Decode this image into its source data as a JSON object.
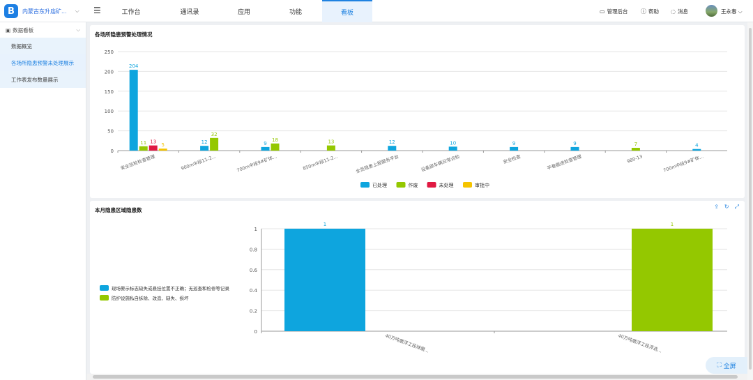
{
  "app": {
    "name": "内蒙古东升庙矿...",
    "logo_letter": "B"
  },
  "nav": {
    "tabs": [
      {
        "label": "工作台"
      },
      {
        "label": "通讯录"
      },
      {
        "label": "应用"
      },
      {
        "label": "功能"
      },
      {
        "label": "看板"
      }
    ],
    "active": "看板"
  },
  "toolbar": {
    "admin": "管理后台",
    "help": "帮助",
    "messages": "消息",
    "user": "王永春"
  },
  "sidebar": {
    "group": "数据看板",
    "items": [
      {
        "label": "数据概览"
      },
      {
        "label": "各场所隐患预警未处理展示"
      },
      {
        "label": "工作表发布数量展示"
      }
    ]
  },
  "fullscreen_label": "全屏",
  "colors": {
    "processed": "#0ea5de",
    "working": "#94c800",
    "unprocessed": "#e01942",
    "reviewing": "#f5c400",
    "accent": "#1f82e1"
  },
  "chart_data": [
    {
      "type": "bar",
      "title": "各场所隐患预警处理情况",
      "categories": [
        "安全巡检检查管理",
        "900m中段11-2...",
        "700m中段9#矿体...",
        "850m中段11-2...",
        "全员隐患上报服务平台",
        "设备部车辆日常点检",
        "安全检查",
        "平巷掘进检查管理",
        "980-13",
        "700m中段9#矿体..."
      ],
      "ylim": [
        0,
        250
      ],
      "yticks": [
        0,
        50,
        100,
        150,
        200,
        250
      ],
      "grid": true,
      "legend_position": "bottom",
      "series": [
        {
          "name": "已处理",
          "color": "#0ea5de",
          "values": [
            204,
            12,
            9,
            null,
            12,
            10,
            9,
            9,
            null,
            4
          ]
        },
        {
          "name": "作废",
          "color": "#94c800",
          "values": [
            11,
            32,
            18,
            13,
            null,
            null,
            null,
            null,
            7,
            null
          ]
        },
        {
          "name": "未处理",
          "color": "#e01942",
          "values": [
            13,
            null,
            null,
            null,
            null,
            null,
            null,
            null,
            null,
            null
          ]
        },
        {
          "name": "审批中",
          "color": "#f5c400",
          "values": [
            5,
            null,
            null,
            null,
            null,
            null,
            null,
            null,
            null,
            null
          ]
        }
      ]
    },
    {
      "type": "bar",
      "title": "本月隐患区域隐患数",
      "categories": [
        "40万吨磨浮工段球磨...",
        "40万吨磨浮工段浮选..."
      ],
      "ylim": [
        0,
        1
      ],
      "yticks": [
        0,
        0.2,
        0.4,
        0.6,
        0.8,
        1
      ],
      "grid": true,
      "legend_position": "left",
      "series": [
        {
          "name": "现场警示标志缺失或悬挂位置不正确；无巡查和检修等记录",
          "color": "#0ea5de",
          "values": [
            1,
            null
          ]
        },
        {
          "name": "防护设施私自拆除、改造、缺失、损坏",
          "color": "#94c800",
          "values": [
            null,
            1
          ]
        }
      ]
    }
  ]
}
